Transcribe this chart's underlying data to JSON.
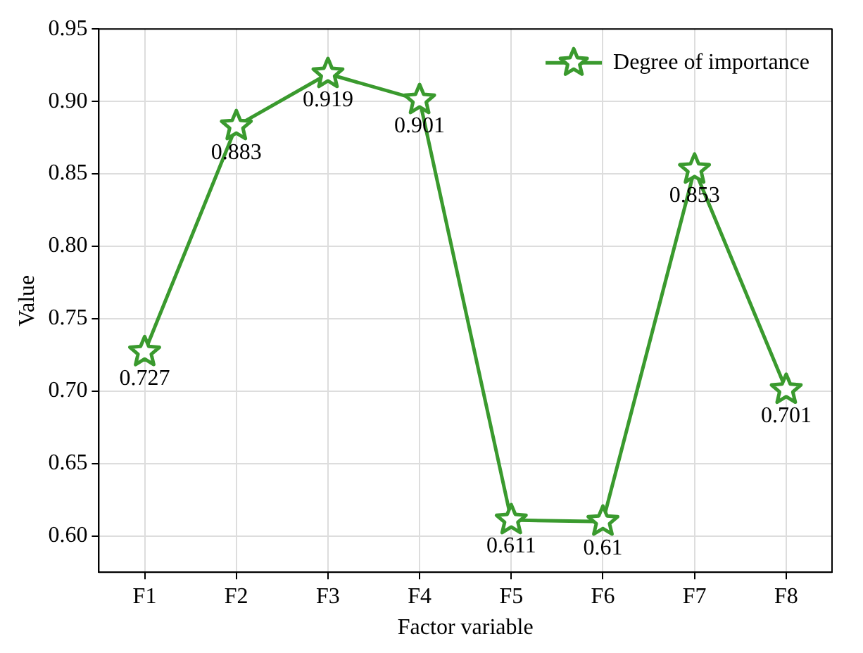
{
  "chart_data": {
    "type": "line",
    "xlabel": "Factor variable",
    "ylabel": "Value",
    "categories": [
      "F1",
      "F2",
      "F3",
      "F4",
      "F5",
      "F6",
      "F7",
      "F8"
    ],
    "series": [
      {
        "name": "Degree of importance",
        "color": "#3a9a2e",
        "values": [
          0.727,
          0.883,
          0.919,
          0.901,
          0.611,
          0.61,
          0.853,
          0.701
        ]
      }
    ],
    "ylim": [
      0.575,
      0.95
    ],
    "yticks": [
      {
        "value": 0.6,
        "label": "0.60"
      },
      {
        "value": 0.65,
        "label": "0.65"
      },
      {
        "value": 0.7,
        "label": "0.70"
      },
      {
        "value": 0.75,
        "label": "0.75"
      },
      {
        "value": 0.8,
        "label": "0.80"
      },
      {
        "value": 0.85,
        "label": "0.85"
      },
      {
        "value": 0.9,
        "label": "0.90"
      },
      {
        "value": 0.95,
        "label": "0.95"
      }
    ],
    "grid": true,
    "legend": "top right",
    "marker": "star",
    "line_style": "solid",
    "data_labels": true
  }
}
